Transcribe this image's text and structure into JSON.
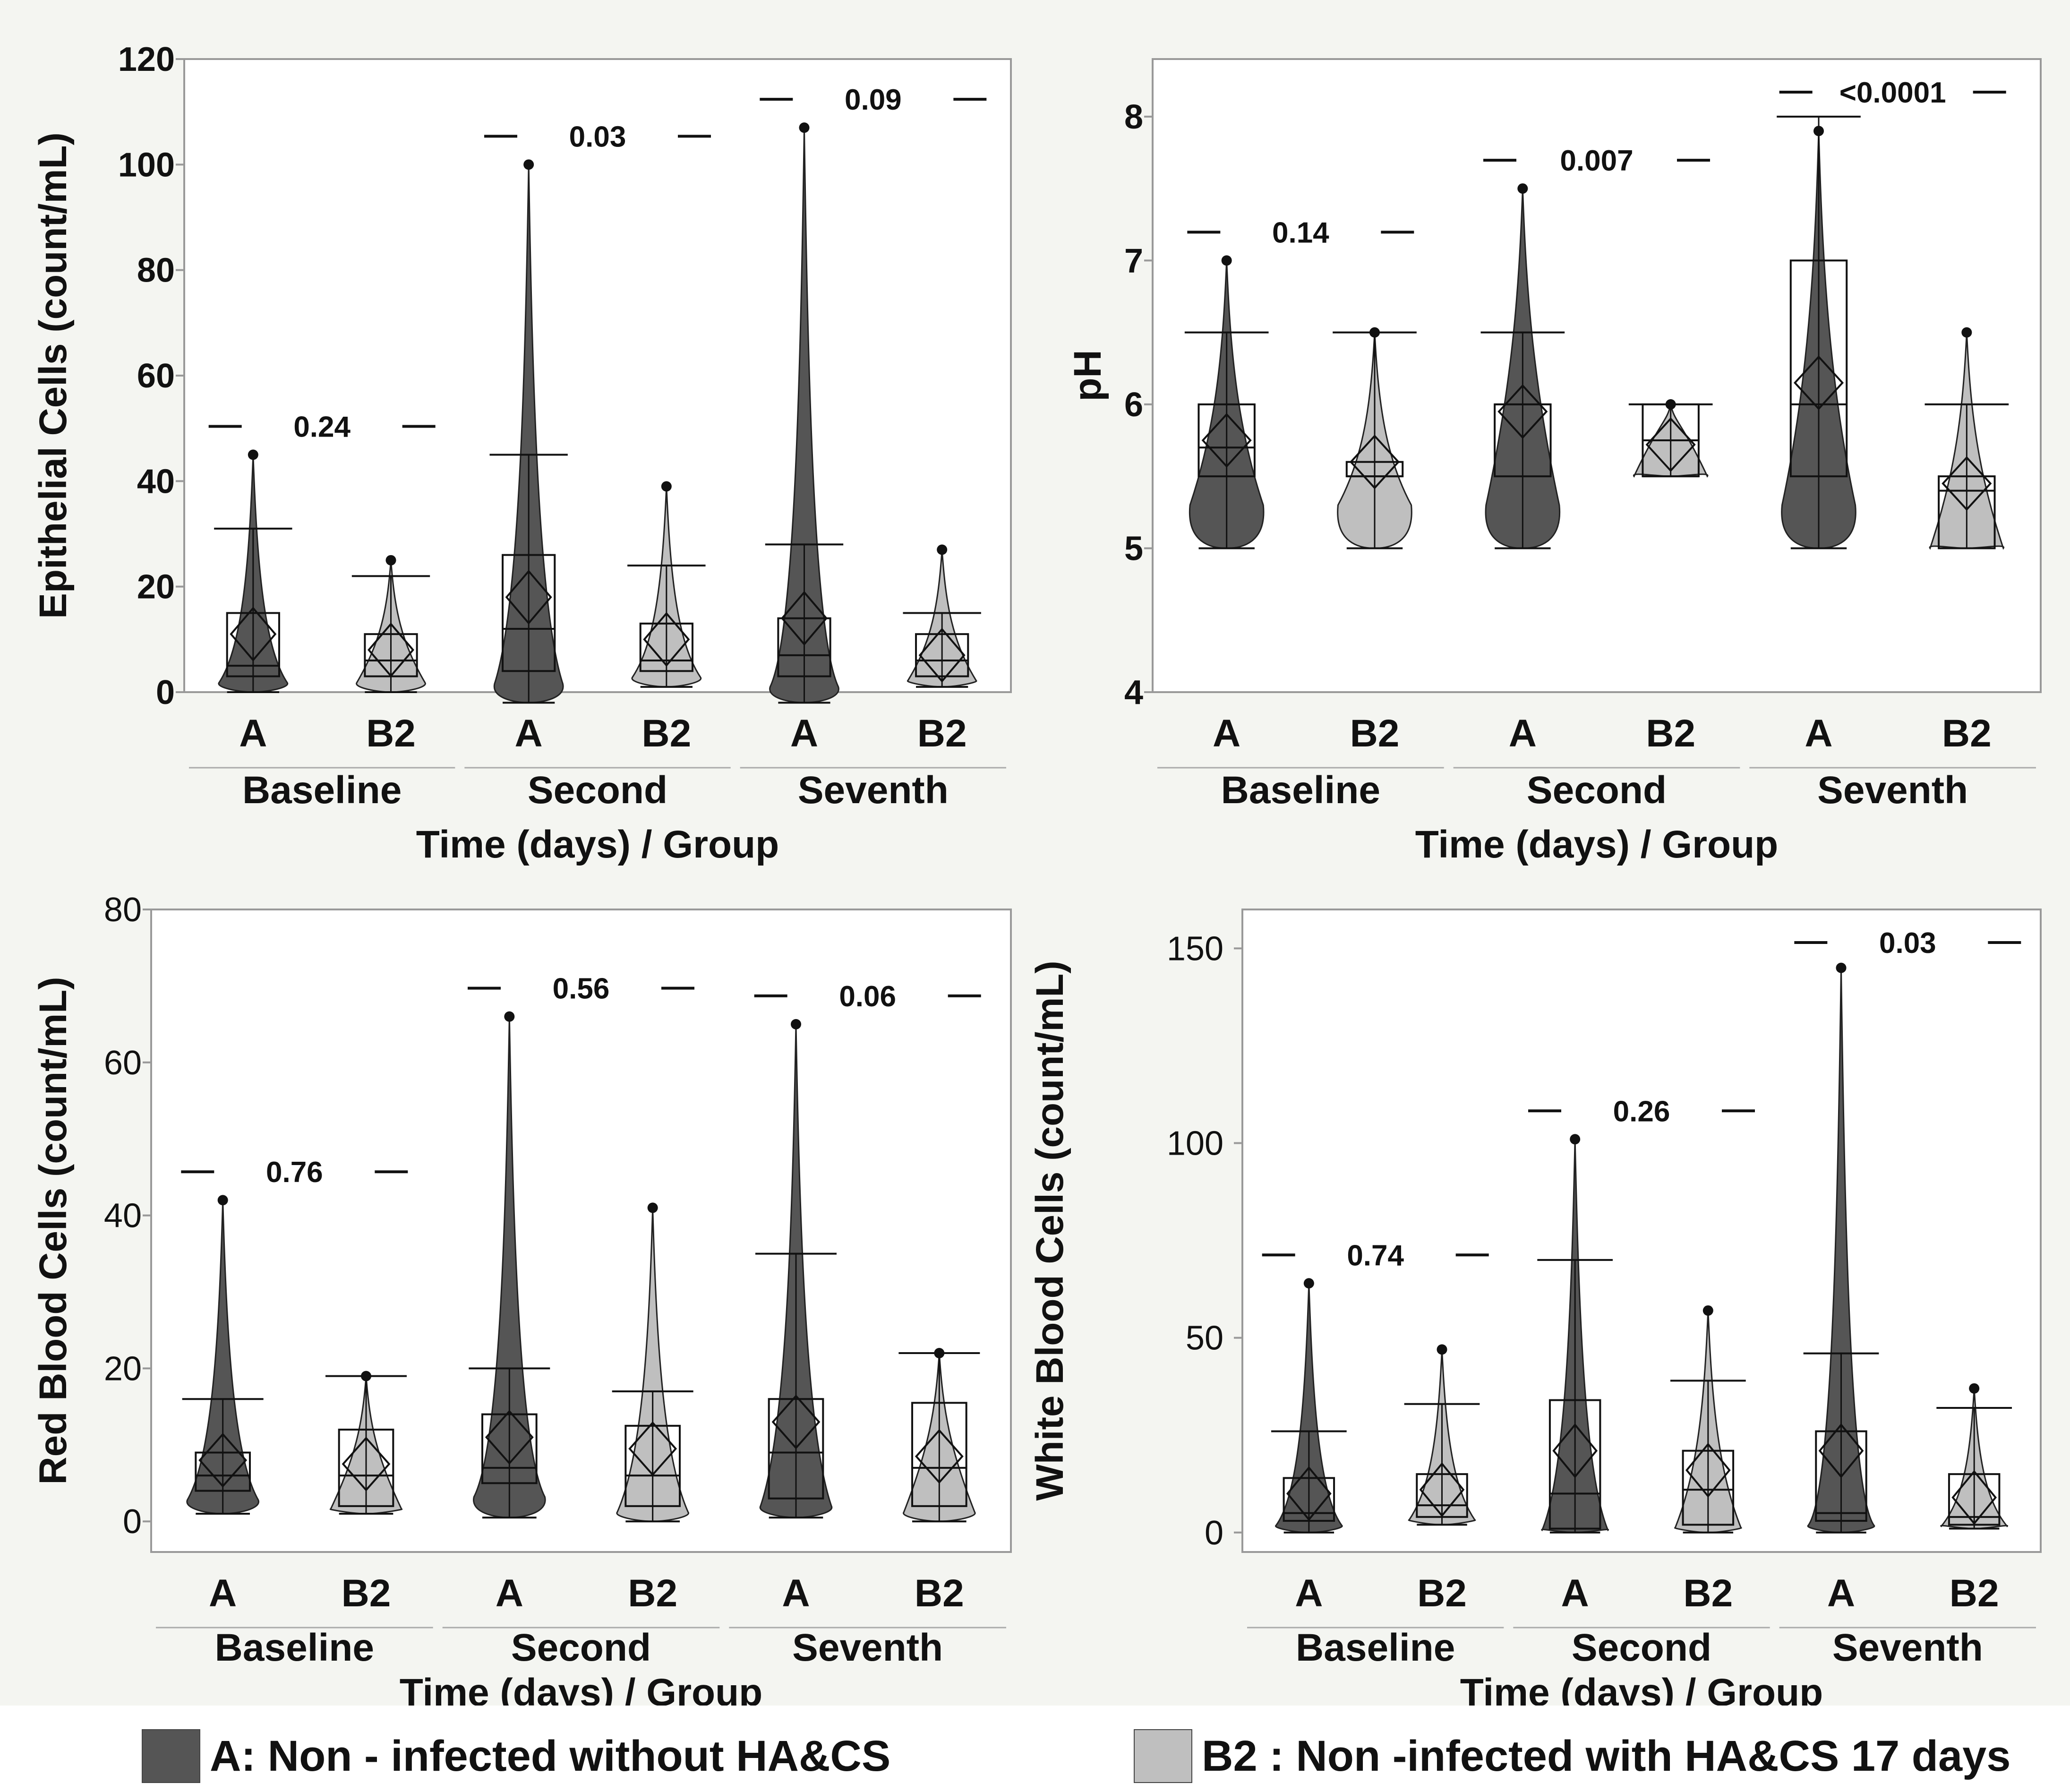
{
  "colors": {
    "group_A": "#555555",
    "group_B2": "#bfbfbf",
    "axis": "#999999",
    "plot_bg": "#ffffff",
    "text": "#111111"
  },
  "legend": {
    "a_label": "A: Non - infected without HA&CS",
    "b_label": "B2 : Non -infected with HA&CS 17 days"
  },
  "chart_data": [
    {
      "type": "violin",
      "title": "",
      "ylabel": "Epithelial Cells (count/mL)",
      "xlabel": "Time (days) / Group",
      "ylim": [
        0,
        120
      ],
      "yticks": [
        0,
        20,
        40,
        60,
        80,
        100,
        120
      ],
      "time_points": [
        "Baseline",
        "Second",
        "Seventh"
      ],
      "groups": [
        "A",
        "B2",
        "A",
        "B2",
        "A",
        "B2"
      ],
      "p_values": [
        "0.24",
        "0.03",
        "0.09"
      ],
      "series": [
        {
          "name": "A",
          "time": "Baseline",
          "min": 0,
          "max": 45,
          "q1": 3,
          "median": 5,
          "q3": 15,
          "mean": 11,
          "whisker_hi": 31
        },
        {
          "name": "B2",
          "time": "Baseline",
          "min": 0,
          "max": 25,
          "q1": 3,
          "median": 6,
          "q3": 11,
          "mean": 8,
          "whisker_hi": 22
        },
        {
          "name": "A",
          "time": "Second",
          "min": -2,
          "max": 100,
          "q1": 4,
          "median": 12,
          "q3": 26,
          "mean": 18,
          "whisker_hi": 45
        },
        {
          "name": "B2",
          "time": "Second",
          "min": 1,
          "max": 39,
          "q1": 4,
          "median": 6,
          "q3": 13,
          "mean": 10,
          "whisker_hi": 24
        },
        {
          "name": "A",
          "time": "Seventh",
          "min": -2,
          "max": 107,
          "q1": 3,
          "median": 7,
          "q3": 14,
          "mean": 14,
          "whisker_hi": 28
        },
        {
          "name": "B2",
          "time": "Seventh",
          "min": 1,
          "max": 27,
          "q1": 3,
          "median": 6,
          "q3": 11,
          "mean": 7,
          "whisker_hi": 15
        }
      ]
    },
    {
      "type": "violin",
      "title": "",
      "ylabel": "pH",
      "xlabel": "Time (days) / Group",
      "ylim": [
        4,
        8.4
      ],
      "yticks": [
        4,
        5,
        6,
        7,
        8
      ],
      "time_points": [
        "Baseline",
        "Second",
        "Seventh"
      ],
      "groups": [
        "A",
        "B2",
        "A",
        "B2",
        "A",
        "B2"
      ],
      "p_values": [
        "0.14",
        "0.007",
        "<0.0001"
      ],
      "series": [
        {
          "name": "A",
          "time": "Baseline",
          "min": 5,
          "max": 7,
          "q1": 5.5,
          "median": 5.7,
          "q3": 6,
          "mean": 5.75,
          "whisker_hi": 6.5
        },
        {
          "name": "B2",
          "time": "Baseline",
          "min": 5,
          "max": 6.5,
          "q1": 5.5,
          "median": 5.5,
          "q3": 5.6,
          "mean": 5.6,
          "whisker_hi": 6.5
        },
        {
          "name": "A",
          "time": "Second",
          "min": 5,
          "max": 7.5,
          "q1": 5.5,
          "median": 6,
          "q3": 6,
          "mean": 5.95,
          "whisker_hi": 6.5
        },
        {
          "name": "B2",
          "time": "Second",
          "min": 5.5,
          "max": 6,
          "q1": 5.5,
          "median": 5.75,
          "q3": 6,
          "mean": 5.72,
          "whisker_hi": 6
        },
        {
          "name": "A",
          "time": "Seventh",
          "min": 5,
          "max": 7.9,
          "q1": 5.5,
          "median": 6,
          "q3": 7,
          "mean": 6.15,
          "whisker_hi": 8
        },
        {
          "name": "B2",
          "time": "Seventh",
          "min": 5,
          "max": 6.5,
          "q1": 5,
          "median": 5.4,
          "q3": 5.5,
          "mean": 5.45,
          "whisker_hi": 6
        }
      ]
    },
    {
      "type": "violin",
      "title": "",
      "ylabel": "Red Blood Cells (count/mL)",
      "xlabel": "Time (days) / Group",
      "ylim": [
        -4,
        80
      ],
      "yticks": [
        0,
        20,
        40,
        60,
        80
      ],
      "time_points": [
        "Baseline",
        "Second",
        "Seventh"
      ],
      "groups": [
        "A",
        "B2",
        "A",
        "B2",
        "A",
        "B2"
      ],
      "p_values": [
        "0.76",
        "0.56",
        "0.06"
      ],
      "series": [
        {
          "name": "A",
          "time": "Baseline",
          "min": 1,
          "max": 42,
          "q1": 4,
          "median": 6,
          "q3": 9,
          "mean": 8,
          "whisker_hi": 16
        },
        {
          "name": "B2",
          "time": "Baseline",
          "min": 1,
          "max": 19,
          "q1": 2,
          "median": 6,
          "q3": 12,
          "mean": 7.5,
          "whisker_hi": 19
        },
        {
          "name": "A",
          "time": "Second",
          "min": 0.5,
          "max": 66,
          "q1": 5,
          "median": 7,
          "q3": 14,
          "mean": 11,
          "whisker_hi": 20
        },
        {
          "name": "B2",
          "time": "Second",
          "min": 0,
          "max": 41,
          "q1": 2,
          "median": 6,
          "q3": 12.5,
          "mean": 9.5,
          "whisker_hi": 17
        },
        {
          "name": "A",
          "time": "Seventh",
          "min": 0.5,
          "max": 65,
          "q1": 3,
          "median": 9,
          "q3": 16,
          "mean": 13,
          "whisker_hi": 35
        },
        {
          "name": "B2",
          "time": "Seventh",
          "min": 0,
          "max": 22,
          "q1": 2,
          "median": 7,
          "q3": 15.5,
          "mean": 8.5,
          "whisker_hi": 22
        }
      ]
    },
    {
      "type": "violin",
      "title": "",
      "ylabel": "White Blood Cells (count/mL)",
      "xlabel": "Time (days) / Group",
      "ylim": [
        -5,
        160
      ],
      "yticks": [
        0,
        50,
        100,
        150
      ],
      "time_points": [
        "Baseline",
        "Second",
        "Seventh"
      ],
      "groups": [
        "A",
        "B2",
        "A",
        "B2",
        "A",
        "B2"
      ],
      "p_values": [
        "0.74",
        "0.26",
        "0.03"
      ],
      "series": [
        {
          "name": "A",
          "time": "Baseline",
          "min": 0,
          "max": 64,
          "q1": 3,
          "median": 5,
          "q3": 14,
          "mean": 10,
          "whisker_hi": 26
        },
        {
          "name": "B2",
          "time": "Baseline",
          "min": 2,
          "max": 47,
          "q1": 4,
          "median": 7,
          "q3": 15,
          "mean": 11,
          "whisker_hi": 33
        },
        {
          "name": "A",
          "time": "Second",
          "min": 0,
          "max": 101,
          "q1": 1,
          "median": 10,
          "q3": 34,
          "mean": 21,
          "whisker_hi": 70
        },
        {
          "name": "B2",
          "time": "Second",
          "min": 0,
          "max": 57,
          "q1": 2,
          "median": 11,
          "q3": 21,
          "mean": 16,
          "whisker_hi": 39
        },
        {
          "name": "A",
          "time": "Seventh",
          "min": 0,
          "max": 145,
          "q1": 3,
          "median": 5,
          "q3": 26,
          "mean": 21,
          "whisker_hi": 46
        },
        {
          "name": "B2",
          "time": "Seventh",
          "min": 1,
          "max": 37,
          "q1": 2,
          "median": 4,
          "q3": 15,
          "mean": 9,
          "whisker_hi": 32
        }
      ]
    }
  ]
}
